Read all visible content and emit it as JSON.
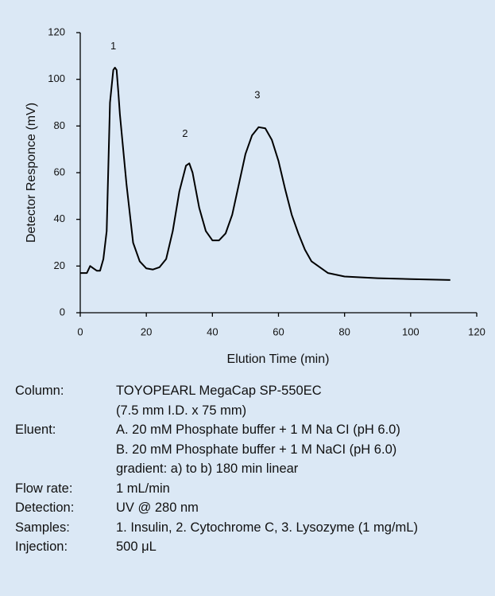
{
  "chart_data": {
    "type": "line",
    "xlabel": "Elution Time (min)",
    "ylabel": "Detector Responce (mV)",
    "x": [
      0,
      2,
      3,
      4,
      5,
      6,
      7,
      8,
      9,
      10,
      10.5,
      11,
      11.5,
      12,
      14,
      16,
      18,
      20,
      22,
      24,
      26,
      28,
      30,
      32,
      33,
      34,
      36,
      38,
      40,
      42,
      44,
      46,
      48,
      50,
      52,
      54,
      56,
      58,
      60,
      62,
      64,
      66,
      68,
      70,
      75,
      80,
      90,
      100,
      112
    ],
    "series": [
      {
        "color": "#000000",
        "values": [
          17,
          17,
          20,
          19,
          18,
          18,
          23,
          35,
          90,
          104,
          105,
          104,
          95,
          85,
          55,
          30,
          22,
          19,
          18.5,
          19.5,
          23,
          35,
          52,
          63,
          64,
          60,
          45,
          35,
          31,
          31,
          34,
          42,
          55,
          68,
          76,
          79.5,
          79,
          74,
          65,
          53,
          42,
          34,
          27,
          22,
          17,
          15.5,
          14.8,
          14.4,
          14
        ]
      }
    ],
    "xlim": [
      0,
      120
    ],
    "xticks": [
      0,
      20,
      40,
      60,
      80,
      100,
      120
    ],
    "ylim": [
      0,
      120
    ],
    "yticks": [
      0,
      20,
      40,
      60,
      80,
      100,
      120
    ],
    "annotations": [
      {
        "text": "1",
        "x": 10,
        "y": 114
      },
      {
        "text": "2",
        "x": 31.7,
        "y": 76.5
      },
      {
        "text": "3",
        "x": 53.6,
        "y": 93
      }
    ]
  },
  "conditions": [
    {
      "label": "Column:",
      "lines": [
        "TOYOPEARL MegaCap SP-550EC",
        "(7.5 mm I.D. x 75 mm)"
      ]
    },
    {
      "label": "Eluent:",
      "lines": [
        "A. 20 mM Phosphate buffer + 1 M Na CI (pH 6.0)",
        "B. 20 mM Phosphate buffer + 1 M NaCI (pH 6.0)",
        "gradient: a) to b) 180 min linear"
      ]
    },
    {
      "label": "Flow rate:",
      "lines": [
        "1 mL/min"
      ]
    },
    {
      "label": "Detection:",
      "lines": [
        "UV @ 280 nm"
      ]
    },
    {
      "label": "Samples:",
      "lines": [
        "1. Insulin, 2. Cytochrome C, 3. Lysozyme (1 mg/mL)"
      ]
    },
    {
      "label": "Injection:",
      "lines": [
        "500 μL"
      ]
    }
  ]
}
